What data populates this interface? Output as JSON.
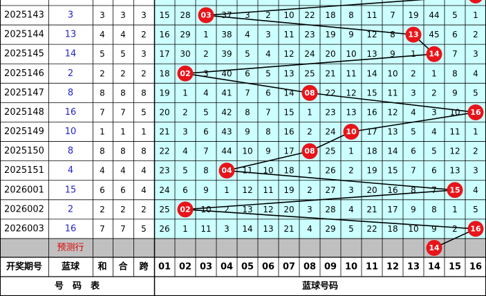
{
  "table": {
    "rows": [
      {
        "period": "2025143",
        "blue": 3,
        "sum": 3,
        "he": 3,
        "span": 3,
        "cells": [
          15,
          28,
          "03",
          37,
          3,
          2,
          10,
          22,
          18,
          8,
          11,
          7,
          19,
          44,
          5,
          1
        ]
      },
      {
        "period": "2025144",
        "blue": 13,
        "sum": 4,
        "he": 4,
        "span": 2,
        "cells": [
          16,
          29,
          1,
          38,
          4,
          3,
          11,
          23,
          19,
          9,
          12,
          8,
          "13",
          45,
          6,
          2
        ]
      },
      {
        "period": "2025145",
        "blue": 14,
        "sum": 5,
        "he": 5,
        "span": 3,
        "cells": [
          17,
          30,
          2,
          39,
          5,
          4,
          12,
          24,
          20,
          10,
          13,
          9,
          1,
          "14",
          7,
          3
        ]
      },
      {
        "period": "2025146",
        "blue": 2,
        "sum": 2,
        "he": 2,
        "span": 2,
        "cells": [
          18,
          "02",
          3,
          40,
          6,
          5,
          13,
          25,
          21,
          11,
          14,
          10,
          2,
          1,
          8,
          4
        ]
      },
      {
        "period": "2025147",
        "blue": 8,
        "sum": 8,
        "he": 8,
        "span": 8,
        "cells": [
          19,
          1,
          4,
          41,
          7,
          6,
          14,
          "08",
          22,
          12,
          15,
          11,
          3,
          2,
          9,
          5
        ]
      },
      {
        "period": "2025148",
        "blue": 16,
        "sum": 7,
        "he": 7,
        "span": 5,
        "cells": [
          20,
          2,
          5,
          42,
          8,
          7,
          15,
          1,
          23,
          13,
          16,
          12,
          4,
          3,
          10,
          "16"
        ]
      },
      {
        "period": "2025149",
        "blue": 10,
        "sum": 1,
        "he": 1,
        "span": 1,
        "cells": [
          21,
          3,
          6,
          43,
          9,
          8,
          16,
          2,
          24,
          "10",
          17,
          13,
          5,
          4,
          11,
          1
        ]
      },
      {
        "period": "2025150",
        "blue": 8,
        "sum": 8,
        "he": 8,
        "span": 8,
        "cells": [
          22,
          4,
          7,
          44,
          10,
          9,
          17,
          "08",
          25,
          1,
          18,
          14,
          6,
          5,
          12,
          2
        ]
      },
      {
        "period": "2025151",
        "blue": 4,
        "sum": 4,
        "he": 4,
        "span": 4,
        "cells": [
          23,
          5,
          8,
          "04",
          11,
          10,
          18,
          1,
          26,
          2,
          19,
          15,
          7,
          6,
          13,
          3
        ]
      },
      {
        "period": "2026001",
        "blue": 15,
        "sum": 6,
        "he": 6,
        "span": 4,
        "cells": [
          24,
          6,
          9,
          1,
          12,
          11,
          19,
          2,
          27,
          3,
          20,
          16,
          8,
          7,
          "15",
          4
        ]
      },
      {
        "period": "2026002",
        "blue": 2,
        "sum": 2,
        "he": 2,
        "span": 2,
        "cells": [
          25,
          "02",
          10,
          2,
          13,
          12,
          20,
          3,
          28,
          4,
          21,
          17,
          9,
          8,
          1,
          5
        ]
      },
      {
        "period": "2026003",
        "blue": 16,
        "sum": 7,
        "he": 7,
        "span": 5,
        "cells": [
          26,
          1,
          11,
          3,
          14,
          13,
          21,
          4,
          29,
          5,
          22,
          18,
          10,
          9,
          2,
          "16"
        ]
      }
    ],
    "prediction": {
      "label": "预测行",
      "ball": "14",
      "column": 14
    },
    "header": [
      "开奖期号",
      "蓝球",
      "和",
      "合",
      "跨",
      "01",
      "02",
      "03",
      "04",
      "05",
      "06",
      "07",
      "08",
      "09",
      "10",
      "11",
      "12",
      "13",
      "14",
      "15",
      "16"
    ],
    "footer": {
      "left": "号　码　表",
      "right": "蓝球号码"
    }
  }
}
